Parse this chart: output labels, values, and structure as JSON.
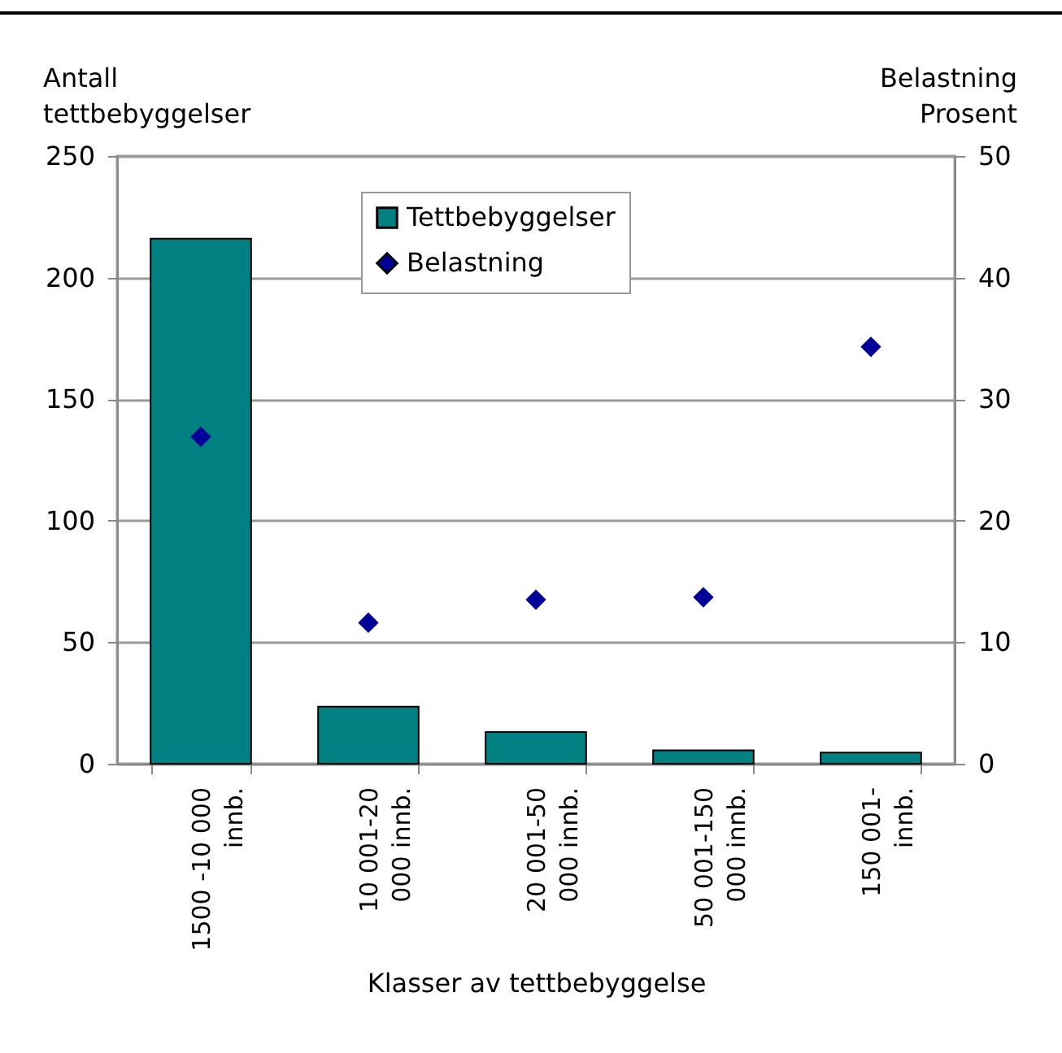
{
  "chart_data": {
    "type": "bar",
    "xlabel": "Klasser av tettbebyggelse",
    "ylabel": "Antall\ntettbebyggelser",
    "y2label": "Belastning\nProsent",
    "categories": [
      "1500 -10 000\ninnb.",
      "10 001-20\n000 innb.",
      "20 001-50\n000 innb.",
      "50 001-150\n000 innb.",
      "150 001-\ninnb."
    ],
    "series": [
      {
        "name": "Tettbebyggelser",
        "color": "#008080",
        "values": [
          216,
          23.5,
          13,
          5.5,
          4.6
        ]
      },
      {
        "name": "Belastning",
        "type": "scatter",
        "axis": "y2",
        "marker": "diamond",
        "color": "#000099",
        "values": [
          26.9,
          11.6,
          13.5,
          13.7,
          34.3
        ]
      }
    ],
    "ylim": [
      0,
      250
    ],
    "yticks": [
      0,
      50,
      100,
      150,
      200,
      250
    ],
    "y2lim": [
      0,
      50
    ],
    "y2ticks": [
      0,
      10,
      20,
      30,
      40,
      50
    ],
    "grid": "y",
    "legend": "top"
  }
}
